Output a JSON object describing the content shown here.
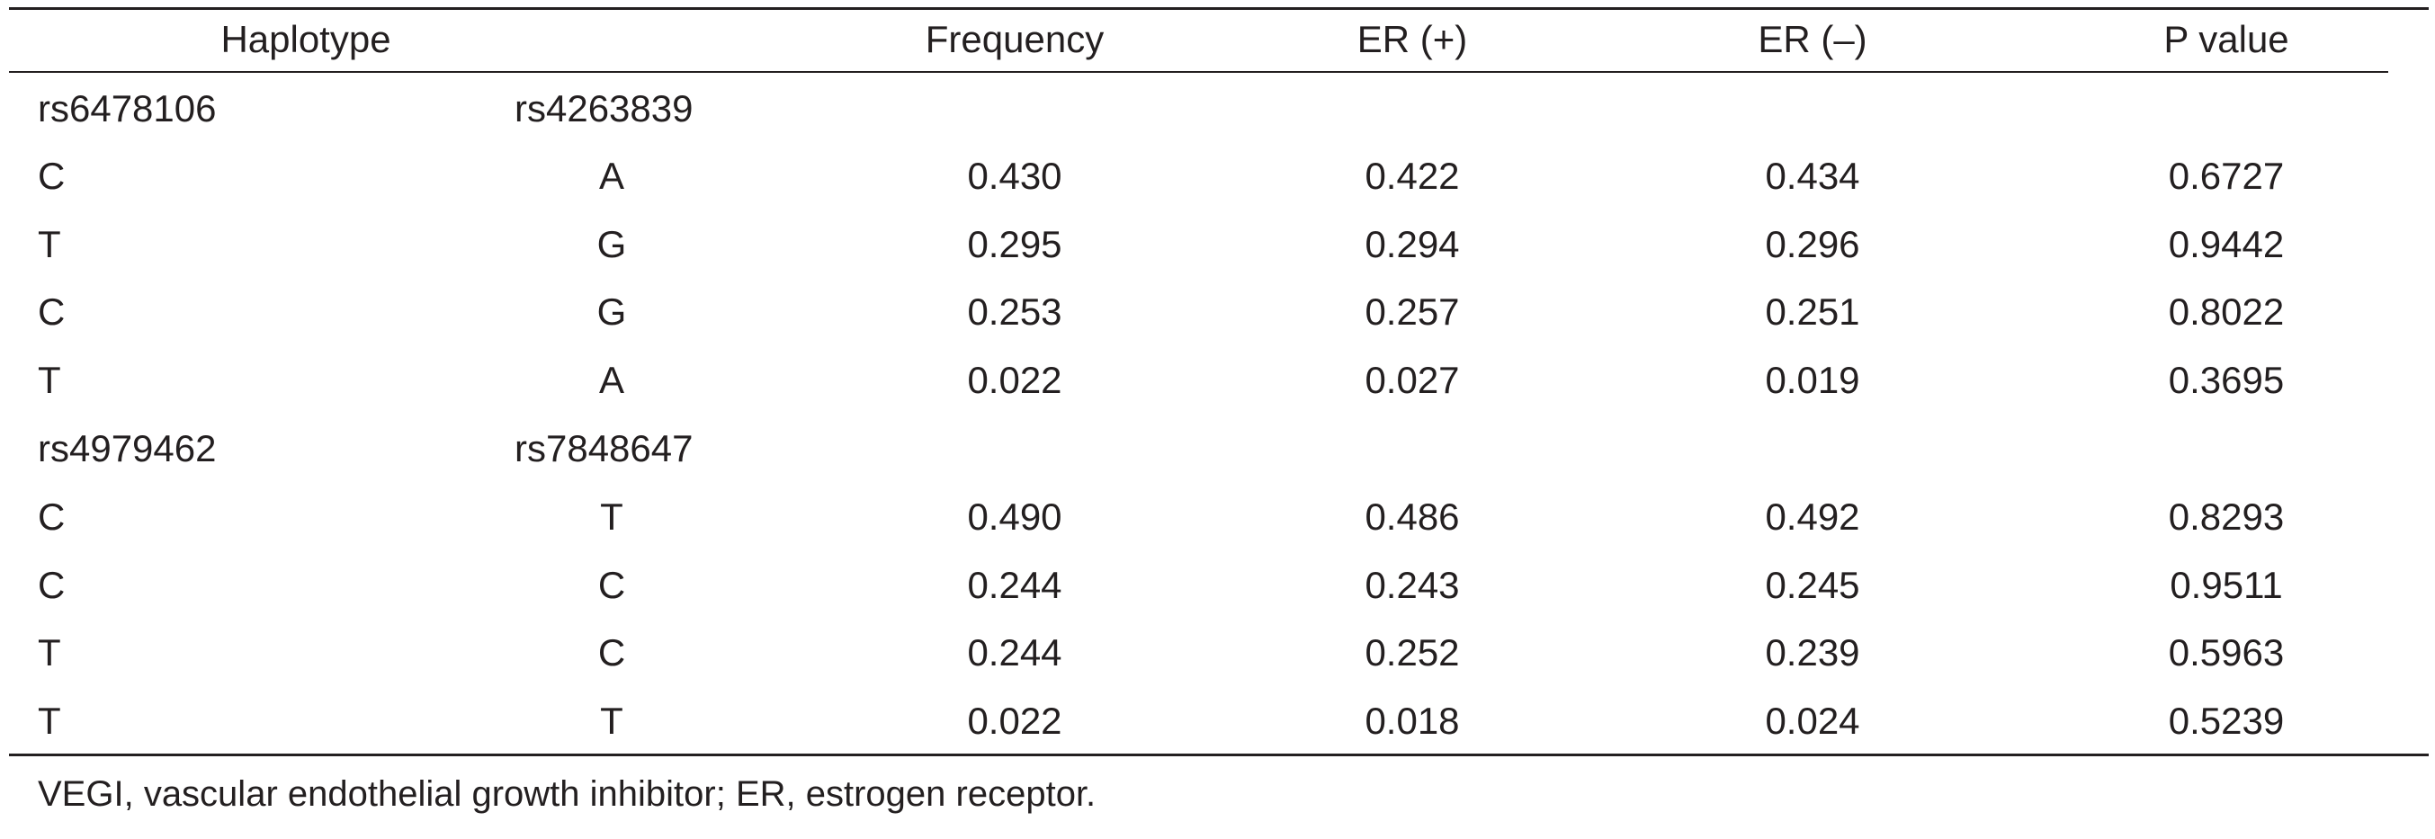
{
  "table": {
    "headers": {
      "haplotype": "Haplotype",
      "frequency": "Frequency",
      "er_pos": "ER (+)",
      "er_neg": "ER (–)",
      "p_value": "P value"
    },
    "group1": {
      "snp_a": "rs6478106",
      "snp_b": "rs4263839",
      "rows": [
        {
          "a": "C",
          "b": "A",
          "freq": "0.430",
          "er_pos": "0.422",
          "er_neg": "0.434",
          "p": "0.6727"
        },
        {
          "a": "T",
          "b": "G",
          "freq": "0.295",
          "er_pos": "0.294",
          "er_neg": "0.296",
          "p": "0.9442"
        },
        {
          "a": "C",
          "b": "G",
          "freq": "0.253",
          "er_pos": "0.257",
          "er_neg": "0.251",
          "p": "0.8022"
        },
        {
          "a": "T",
          "b": "A",
          "freq": "0.022",
          "er_pos": "0.027",
          "er_neg": "0.019",
          "p": "0.3695"
        }
      ]
    },
    "group2": {
      "snp_a": "rs4979462",
      "snp_b": "rs7848647",
      "rows": [
        {
          "a": "C",
          "b": "T",
          "freq": "0.490",
          "er_pos": "0.486",
          "er_neg": "0.492",
          "p": "0.8293"
        },
        {
          "a": "C",
          "b": "C",
          "freq": "0.244",
          "er_pos": "0.243",
          "er_neg": "0.245",
          "p": "0.9511"
        },
        {
          "a": "T",
          "b": "C",
          "freq": "0.244",
          "er_pos": "0.252",
          "er_neg": "0.239",
          "p": "0.5963"
        },
        {
          "a": "T",
          "b": "T",
          "freq": "0.022",
          "er_pos": "0.018",
          "er_neg": "0.024",
          "p": "0.5239"
        }
      ]
    }
  },
  "footnote": "VEGI, vascular endothelial growth inhibitor; ER, estrogen receptor."
}
